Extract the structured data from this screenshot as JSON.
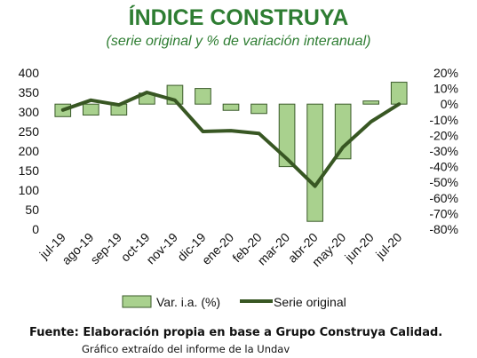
{
  "colors": {
    "title": "#2e7d32",
    "bar_fill": "#a9d18e",
    "bar_stroke": "#3a5a2a",
    "line": "#385723"
  },
  "header": {
    "title": "ÍNDICE CONSTRUYA",
    "subtitle": "(serie original y % de variación interanual)"
  },
  "footer": {
    "source": "Fuente: Elaboración propia en base a Grupo Construya Calidad.",
    "note": "Gráfico extraído del informe de la Undav"
  },
  "chart_data": {
    "type": "bar+line",
    "categories": [
      "jul-19",
      "ago-19",
      "sep-19",
      "oct-19",
      "nov-19",
      "dic-19",
      "ene-20",
      "feb-20",
      "mar-20",
      "abr-20",
      "may-20",
      "jun-20",
      "jul-20"
    ],
    "series": [
      {
        "name": "Var. i.a. (%)",
        "type": "bar",
        "axis": "right",
        "values": [
          -8,
          -7,
          -7,
          7,
          12,
          10,
          -4,
          -6,
          -40,
          -75,
          -35,
          2,
          14
        ]
      },
      {
        "name": "Serie original",
        "type": "line",
        "axis": "left",
        "values": [
          305,
          330,
          318,
          350,
          330,
          250,
          252,
          245,
          180,
          110,
          210,
          275,
          320
        ]
      }
    ],
    "y_left": {
      "ylim": [
        0,
        400
      ],
      "ticks": [
        "0",
        "50",
        "100",
        "150",
        "200",
        "250",
        "300",
        "350",
        "400"
      ]
    },
    "y_right": {
      "ylim": [
        -80,
        20
      ],
      "ticks": [
        "-80%",
        "-70%",
        "-60%",
        "-50%",
        "-40%",
        "-30%",
        "-20%",
        "-10%",
        "0%",
        "10%",
        "20%"
      ]
    },
    "grid": false,
    "legend": {
      "position": "bottom",
      "entries": [
        "Var. i.a. (%)",
        "Serie original"
      ]
    }
  }
}
